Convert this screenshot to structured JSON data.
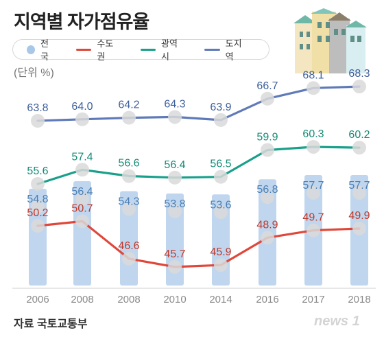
{
  "header": {
    "title": "지역별 자가점유율",
    "unit": "(단위 %)"
  },
  "legend": [
    {
      "label": "전국",
      "type": "bar",
      "color": "#a9c8e8"
    },
    {
      "label": "수도권",
      "type": "line",
      "color": "#e0473a"
    },
    {
      "label": "광역시",
      "type": "line",
      "color": "#18a08a"
    },
    {
      "label": "도지역",
      "type": "line",
      "color": "#5f7ab8"
    }
  ],
  "footer": {
    "source": "자료 국토교통부",
    "logo_text": "news 1"
  },
  "chart_data": {
    "type": "bar",
    "categories": [
      "2006",
      "2008",
      "2008",
      "2010",
      "2014",
      "2016",
      "2017",
      "2018"
    ],
    "series": [
      {
        "name": "전국",
        "type": "bar",
        "color": "#a9c8e8",
        "label_color": "#4a7fb5",
        "values": [
          54.8,
          56.4,
          54.3,
          53.8,
          53.6,
          56.8,
          57.7,
          57.7
        ],
        "labels": [
          "54.8",
          "56.4",
          "54.3",
          "53.8",
          "53.6",
          "56.8",
          "57.7",
          "57.7"
        ]
      },
      {
        "name": "수도권",
        "type": "line",
        "color": "#e0473a",
        "label_color": "#c0392b",
        "values": [
          50.2,
          50.7,
          46.6,
          45.7,
          45.9,
          48.9,
          49.7,
          49.9
        ],
        "labels": [
          "50.2",
          "50.7",
          "46.6",
          "45.7",
          "45.9",
          "48.9",
          "49.7",
          "49.9"
        ]
      },
      {
        "name": "광역시",
        "type": "line",
        "color": "#18a08a",
        "label_color": "#138a76",
        "values": [
          55.6,
          57.4,
          56.6,
          56.4,
          56.5,
          59.9,
          60.3,
          60.2
        ],
        "labels": [
          "55.6",
          "57.4",
          "56.6",
          "56.4",
          "56.5",
          "59.9",
          "60.3",
          "60.2"
        ]
      },
      {
        "name": "도지역",
        "type": "line",
        "color": "#5f7ab8",
        "label_color": "#3d5f9c",
        "values": [
          63.8,
          64.0,
          64.2,
          64.3,
          63.9,
          66.7,
          68.1,
          68.3
        ],
        "labels": [
          "63.8",
          "64.0",
          "64.2",
          "64.3",
          "63.9",
          "66.7",
          "68.1",
          "68.3"
        ]
      }
    ],
    "title": "지역별 자가점유율",
    "ylabel": "(단위 %)",
    "grid": false,
    "legend_position": "top-left"
  }
}
